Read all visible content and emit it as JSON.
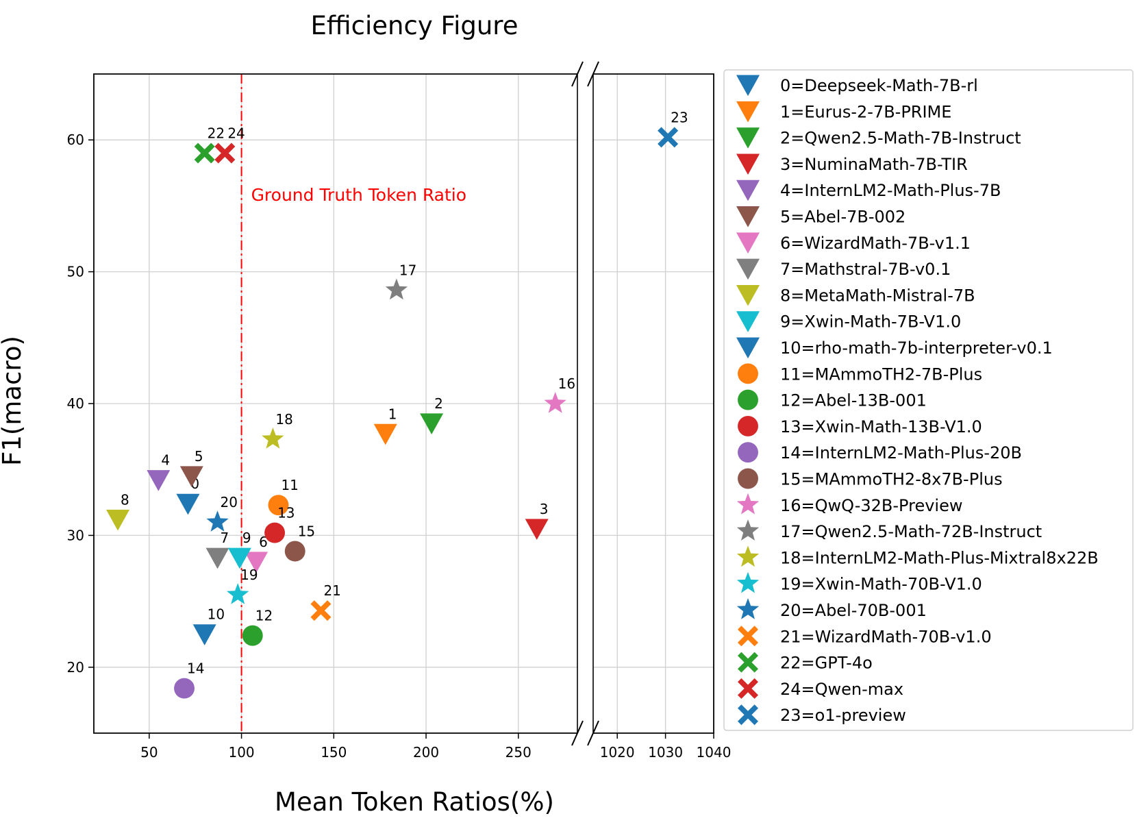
{
  "chart_data": {
    "type": "scatter",
    "title": "Efficiency Figure",
    "xlabel": "Mean Token Ratios(%)",
    "ylabel": "F1(macro)",
    "xlim_left": [
      20,
      282
    ],
    "xlim_right": [
      1015,
      1040
    ],
    "ylim": [
      15,
      65
    ],
    "xticks_left": [
      50,
      100,
      150,
      200,
      250
    ],
    "xticks_right": [
      1020,
      1030,
      1040
    ],
    "yticks": [
      20,
      30,
      40,
      50,
      60
    ],
    "grid": true,
    "legend_position": "right outside",
    "reference_line": {
      "x": 100,
      "label": "Ground Truth Token Ratio",
      "color": "#ff0000"
    },
    "series": [
      {
        "id": "0",
        "name": "0=Deepseek-Math-7B-rl",
        "marker": "triangle-down",
        "color": "#1f77b4",
        "x": 71,
        "y": 32.4
      },
      {
        "id": "1",
        "name": "1=Eurus-2-7B-PRIME",
        "marker": "triangle-down",
        "color": "#ff7f0e",
        "x": 178,
        "y": 37.7
      },
      {
        "id": "2",
        "name": "2=Qwen2.5-Math-7B-Instruct",
        "marker": "triangle-down",
        "color": "#2ca02c",
        "x": 203,
        "y": 38.5
      },
      {
        "id": "3",
        "name": "3=NuminaMath-7B-TIR",
        "marker": "triangle-down",
        "color": "#d62728",
        "x": 260,
        "y": 30.5
      },
      {
        "id": "4",
        "name": "4=InternLM2-Math-Plus-7B",
        "marker": "triangle-down",
        "color": "#9467bd",
        "x": 55,
        "y": 34.2
      },
      {
        "id": "5",
        "name": "5=Abel-7B-002",
        "marker": "triangle-down",
        "color": "#8c564b",
        "x": 73,
        "y": 34.5
      },
      {
        "id": "6",
        "name": "6=WizardMath-7B-v1.1",
        "marker": "triangle-down",
        "color": "#e377c2",
        "x": 108,
        "y": 28.0
      },
      {
        "id": "7",
        "name": "7=Mathstral-7B-v0.1",
        "marker": "triangle-down",
        "color": "#7f7f7f",
        "x": 87,
        "y": 28.3
      },
      {
        "id": "8",
        "name": "8=MetaMath-Mistral-7B",
        "marker": "triangle-down",
        "color": "#bcbd22",
        "x": 33,
        "y": 31.2
      },
      {
        "id": "9",
        "name": "9=Xwin-Math-7B-V1.0",
        "marker": "triangle-down",
        "color": "#17becf",
        "x": 99,
        "y": 28.3
      },
      {
        "id": "10",
        "name": "10=rho-math-7b-interpreter-v0.1",
        "marker": "triangle-down",
        "color": "#1f77b4",
        "x": 80,
        "y": 22.5
      },
      {
        "id": "11",
        "name": "11=MAmmoTH2-7B-Plus",
        "marker": "circle",
        "color": "#ff7f0e",
        "x": 120,
        "y": 32.3
      },
      {
        "id": "12",
        "name": "12=Abel-13B-001",
        "marker": "circle",
        "color": "#2ca02c",
        "x": 106,
        "y": 22.4
      },
      {
        "id": "13",
        "name": "13=Xwin-Math-13B-V1.0",
        "marker": "circle",
        "color": "#d62728",
        "x": 118,
        "y": 30.2
      },
      {
        "id": "14",
        "name": "14=InternLM2-Math-Plus-20B",
        "marker": "circle",
        "color": "#9467bd",
        "x": 69,
        "y": 18.4
      },
      {
        "id": "15",
        "name": "15=MAmmoTH2-8x7B-Plus",
        "marker": "circle",
        "color": "#8c564b",
        "x": 129,
        "y": 28.8
      },
      {
        "id": "16",
        "name": "16=QwQ-32B-Preview",
        "marker": "star",
        "color": "#e377c2",
        "x": 270,
        "y": 40.0
      },
      {
        "id": "17",
        "name": "17=Qwen2.5-Math-72B-Instruct",
        "marker": "star",
        "color": "#7f7f7f",
        "x": 184,
        "y": 48.6
      },
      {
        "id": "18",
        "name": "18=InternLM2-Math-Plus-Mixtral8x22B",
        "marker": "star",
        "color": "#bcbd22",
        "x": 117,
        "y": 37.3
      },
      {
        "id": "19",
        "name": "19=Xwin-Math-70B-V1.0",
        "marker": "star",
        "color": "#17becf",
        "x": 98,
        "y": 25.5
      },
      {
        "id": "20",
        "name": "20=Abel-70B-001",
        "marker": "star",
        "color": "#1f77b4",
        "x": 87,
        "y": 31.0
      },
      {
        "id": "21",
        "name": "21=WizardMath-70B-v1.0",
        "marker": "x",
        "color": "#ff7f0e",
        "x": 143,
        "y": 24.3
      },
      {
        "id": "22",
        "name": "22=GPT-4o",
        "marker": "x",
        "color": "#2ca02c",
        "x": 80,
        "y": 59.0
      },
      {
        "id": "24",
        "name": "24=Qwen-max",
        "marker": "x",
        "color": "#d62728",
        "x": 91,
        "y": 59.0
      },
      {
        "id": "23",
        "name": "23=o1-preview",
        "marker": "x",
        "color": "#1f77b4",
        "x": 1030.5,
        "y": 60.2
      }
    ]
  }
}
